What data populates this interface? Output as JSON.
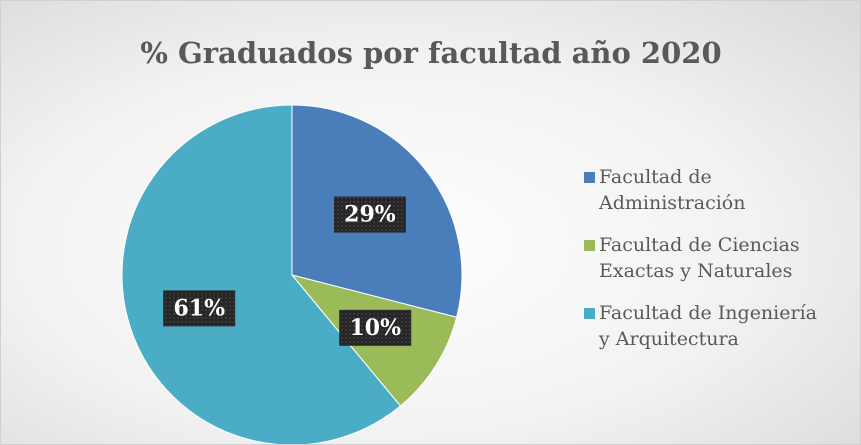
{
  "chart_data": {
    "type": "pie",
    "title": "% Graduados por facultad año 2020",
    "categories": [
      "Facultad de Administración",
      "Facultad de Ciencias Exactas y Naturales",
      "Facultad de Ingeniería y Arquitectura"
    ],
    "values": [
      29,
      10,
      61
    ],
    "value_labels": [
      "29%",
      "10%",
      "61%"
    ],
    "colors": [
      "#4a7ebb",
      "#9bbb59",
      "#4bacc6"
    ],
    "legend": "right"
  }
}
